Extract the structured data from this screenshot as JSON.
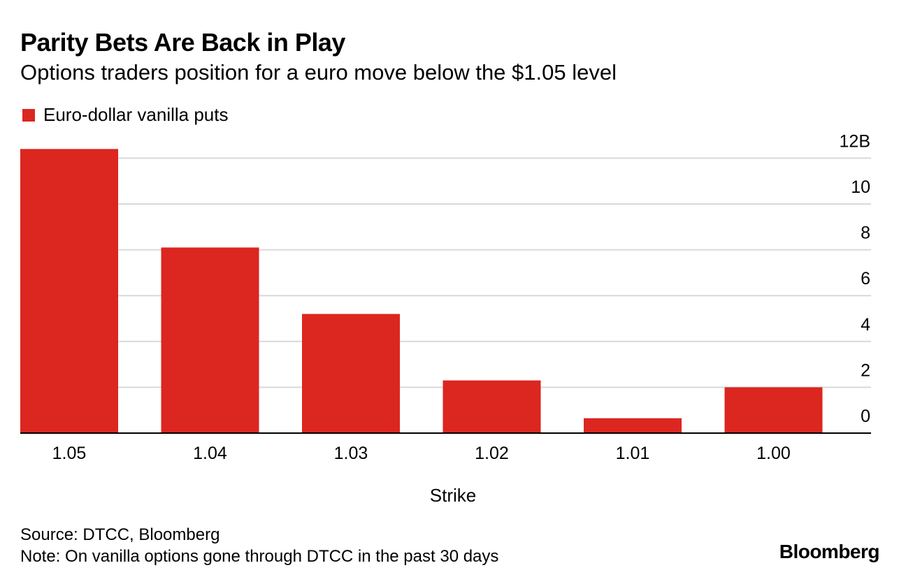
{
  "header": {
    "title": "Parity Bets Are Back in Play",
    "subtitle": "Options traders position for a euro move below the $1.05 level"
  },
  "legend": {
    "label": "Euro-dollar vanilla puts"
  },
  "footer": {
    "source": "Source: DTCC, Bloomberg",
    "note": "Note: On vanilla options gone through DTCC in the past 30 days",
    "brand": "Bloomberg"
  },
  "colors": {
    "bar": "#dc2620",
    "grid": "#d9d9d9",
    "axis": "#000000"
  },
  "chart_data": {
    "type": "bar",
    "title": "Parity Bets Are Back in Play",
    "subtitle": "Options traders position for a euro move below the $1.05 level",
    "xlabel": "Strike",
    "ylabel": "",
    "categories": [
      "1.05",
      "1.04",
      "1.03",
      "1.02",
      "1.01",
      "1.00"
    ],
    "series": [
      {
        "name": "Euro-dollar vanilla puts",
        "values": [
          12.4,
          8.1,
          5.2,
          2.3,
          0.65,
          2.0
        ]
      }
    ],
    "ylim": [
      0,
      12
    ],
    "yticks": [
      0,
      2,
      4,
      6,
      8,
      10,
      12
    ],
    "ytick_labels": [
      "0",
      "2",
      "4",
      "6",
      "8",
      "10",
      "12B"
    ],
    "grid": true,
    "legend_position": "top-left",
    "yaxis_position": "right"
  }
}
